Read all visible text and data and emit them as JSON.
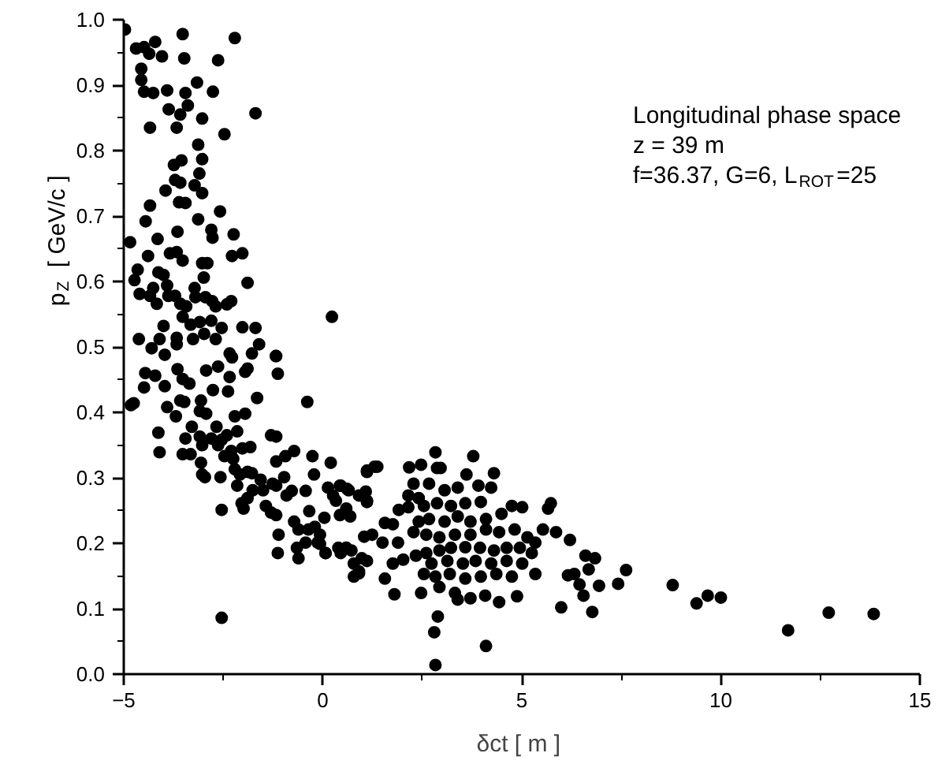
{
  "chart_data": {
    "type": "scatter",
    "xlabel": "δct  [ m ]",
    "ylabel": "p$_{Z}$  [ GeV/c ]",
    "annotations": [
      "Longitudinal phase space",
      "z = 39 m",
      "f=36.37, G=6, L$_{ROT}$=25"
    ],
    "xlim": [
      -5,
      15
    ],
    "xticks": [
      -5,
      0,
      5,
      10,
      15
    ],
    "ylim": [
      0,
      1
    ],
    "yticks": [
      {
        "value": 0,
        "label": "0.0"
      },
      0.1,
      0.2,
      0.3,
      0.4,
      0.5,
      0.6,
      0.7,
      0.8,
      0.9,
      {
        "value": 1,
        "label": "1.0"
      }
    ],
    "grid": false,
    "marker": "circle",
    "series": [
      {
        "color": "#000000",
        "x": [
          -4.97,
          -4.69,
          -4.49,
          -4.36,
          -4.21,
          -4.04,
          -3.52,
          -3.48,
          -2.63,
          -2.21,
          -4.56,
          -4.56,
          -4.49,
          -4.26,
          -3.91,
          -3.45,
          -3.16,
          -2.76,
          -3.39,
          -3.87,
          -3.58,
          -3.03,
          -1.69,
          -4.34,
          -3.67,
          -2.47,
          -3.13,
          -3.03,
          -3.55,
          -3.74,
          -3.71,
          -3.58,
          -3.1,
          -3.95,
          -3.22,
          -3.03,
          -3.61,
          -3.45,
          -4.34,
          -2.58,
          -3.13,
          -4.45,
          -3.65,
          -2.8,
          -2.77,
          -2.24,
          -4.15,
          -4.84,
          -3.84,
          -3.67,
          -4.39,
          -3.52,
          -2.28,
          -2.02,
          -3.03,
          -2.9,
          -4.65,
          -4.73,
          -4.13,
          -4.0,
          -2.99,
          -1.89,
          -4.6,
          -4.34,
          -4.26,
          -3.91,
          -3.88,
          -3.71,
          -4.17,
          -3.58,
          -3.22,
          -3.2,
          -3.43,
          -2.95,
          -2.78,
          -2.69,
          -2.41,
          -2.3,
          -3.52,
          0.23,
          -3.32,
          -3.09,
          -2.8,
          -4.0,
          -2.54,
          -2.02,
          -1.69,
          -4.62,
          -4.1,
          -3.67,
          -3.26,
          -2.69,
          -2.98,
          -1.6,
          -4.3,
          -3.67,
          -2.34,
          -1.78,
          -1.18,
          -3.97,
          -4.82,
          -4.75,
          -4.49,
          -4.46,
          -4.21,
          -3.97,
          -3.91,
          -4.13,
          -4.1,
          -3.65,
          -3.52,
          -3.35,
          -3.69,
          -3.58,
          -3.48,
          -3.29,
          -3.45,
          -3.52,
          -3.32,
          -3.09,
          -3.06,
          -2.93,
          -3.09,
          -3.03,
          -3.06,
          -3.03,
          -2.96,
          -2.8,
          -2.67,
          -2.63,
          -2.54,
          -2.57,
          -2.54,
          -2.47,
          -2.41,
          -2.3,
          -2.25,
          -2.76,
          -2.93,
          -2.63,
          -2.34,
          -2.28,
          -2.38,
          -1.95,
          -1.89,
          -1.65,
          -1.17,
          -1.13,
          -2.21,
          -2.15,
          -1.95,
          -2.02,
          -1.82,
          -2.21,
          -2.08,
          -1.89,
          -1.78,
          -2.15,
          -2.04,
          -1.99,
          -1.89,
          -1.76,
          -1.56,
          -1.5,
          -1.43,
          -1.3,
          -1.17,
          -1.17,
          -1.26,
          -1.17,
          -1.3,
          -1.17,
          -1.11,
          -1.13,
          -0.94,
          -0.72,
          -0.97,
          -0.91,
          -0.78,
          -0.72,
          -0.61,
          -0.65,
          -0.61,
          -0.39,
          -0.43,
          -0.34,
          -0.36,
          -0.43,
          -0.26,
          -0.22,
          -0.2,
          -0.07,
          -0.13,
          -0.07,
          0.07,
          0.04,
          0.13,
          0.2,
          0.26,
          0.33,
          0.45,
          0.61,
          0.43,
          0.59,
          0.69,
          0.39,
          0.45,
          0.59,
          0.72,
          0.78,
          0.91,
          0.98,
          1.04,
          1.11,
          1.11,
          1.3,
          -2.54,
          1.11,
          1.37,
          0.43,
          0.65,
          0.91,
          1.11,
          1.08,
          1.56,
          1.76,
          1.24,
          1.5,
          1.89,
          2.02,
          1.76,
          1.56,
          1.8,
          1.11,
          0.78,
          0.91,
          0.59,
          0.07,
          2.17,
          2.47,
          2.83,
          2.87,
          2.96,
          3.78,
          3.61,
          4.3,
          2.28,
          2.67,
          2.15,
          2.41,
          3.06,
          3.39,
          3.91,
          4.23,
          1.91,
          2.15,
          2.54,
          2.87,
          3.22,
          3.58,
          3.97,
          4.75,
          5.01,
          5.73,
          5.66,
          4.49,
          4.1,
          3.71,
          3.39,
          3.06,
          2.67,
          2.41,
          2.28,
          2.6,
          2.93,
          3.32,
          3.71,
          4.1,
          4.43,
          4.82,
          5.14,
          5.53,
          5.86,
          6.21,
          5.34,
          4.95,
          4.62,
          4.3,
          3.95,
          3.58,
          3.22,
          2.93,
          2.6,
          2.34,
          2.73,
          3.13,
          3.52,
          3.84,
          4.23,
          4.62,
          5.01,
          5.25,
          2.54,
          2.83,
          3.19,
          3.58,
          3.97,
          4.36,
          4.75,
          5.34,
          2.47,
          2.93,
          3.32,
          3.71,
          4.08,
          4.43,
          4.88,
          3.39,
          6.6,
          6.84,
          6.32,
          6.16,
          6.68,
          6.45,
          6.94,
          5.99,
          6.55,
          6.77,
          7.42,
          7.62,
          2.89,
          2.8,
          4.1,
          2.83,
          8.79,
          9.39,
          9.67,
          10.0,
          11.69,
          12.71,
          13.84
        ],
        "values": [
          0.985,
          0.956,
          0.958,
          0.948,
          0.966,
          0.944,
          0.978,
          0.941,
          0.938,
          0.972,
          0.925,
          0.908,
          0.89,
          0.888,
          0.892,
          0.888,
          0.904,
          0.89,
          0.869,
          0.863,
          0.855,
          0.849,
          0.857,
          0.835,
          0.835,
          0.825,
          0.809,
          0.787,
          0.785,
          0.778,
          0.755,
          0.751,
          0.765,
          0.739,
          0.747,
          0.735,
          0.721,
          0.72,
          0.716,
          0.707,
          0.695,
          0.692,
          0.676,
          0.679,
          0.667,
          0.672,
          0.665,
          0.66,
          0.643,
          0.645,
          0.639,
          0.632,
          0.639,
          0.643,
          0.628,
          0.628,
          0.618,
          0.602,
          0.614,
          0.61,
          0.606,
          0.598,
          0.581,
          0.578,
          0.59,
          0.594,
          0.578,
          0.578,
          0.566,
          0.566,
          0.59,
          0.576,
          0.562,
          0.576,
          0.57,
          0.562,
          0.565,
          0.57,
          0.546,
          0.546,
          0.534,
          0.538,
          0.54,
          0.532,
          0.529,
          0.53,
          0.529,
          0.512,
          0.512,
          0.514,
          0.512,
          0.512,
          0.52,
          0.504,
          0.498,
          0.504,
          0.49,
          0.49,
          0.486,
          0.488,
          0.411,
          0.414,
          0.438,
          0.46,
          0.456,
          0.44,
          0.408,
          0.369,
          0.339,
          0.466,
          0.451,
          0.444,
          0.394,
          0.418,
          0.416,
          0.378,
          0.36,
          0.336,
          0.336,
          0.402,
          0.418,
          0.398,
          0.363,
          0.35,
          0.323,
          0.305,
          0.301,
          0.36,
          0.378,
          0.35,
          0.358,
          0.301,
          0.251,
          0.333,
          0.365,
          0.341,
          0.329,
          0.434,
          0.464,
          0.47,
          0.454,
          0.484,
          0.432,
          0.462,
          0.467,
          0.422,
          0.486,
          0.459,
          0.394,
          0.371,
          0.398,
          0.345,
          0.347,
          0.313,
          0.305,
          0.309,
          0.307,
          0.288,
          0.261,
          0.253,
          0.269,
          0.281,
          0.297,
          0.281,
          0.257,
          0.365,
          0.363,
          0.325,
          0.291,
          0.288,
          0.247,
          0.243,
          0.213,
          0.185,
          0.333,
          0.341,
          0.301,
          0.273,
          0.28,
          0.233,
          0.221,
          0.193,
          0.177,
          0.416,
          0.28,
          0.249,
          0.221,
          0.201,
          0.333,
          0.305,
          0.225,
          0.213,
          0.201,
          0.199,
          0.185,
          0.239,
          0.285,
          0.323,
          0.273,
          0.265,
          0.288,
          0.283,
          0.243,
          0.253,
          0.241,
          0.193,
          0.185,
          0.193,
          0.189,
          0.149,
          0.157,
          0.177,
          0.21,
          0.265,
          0.309,
          0.317,
          0.086,
          0.311,
          0.317,
          0.288,
          0.281,
          0.273,
          0.263,
          0.279,
          0.231,
          0.229,
          0.213,
          0.201,
          0.201,
          0.175,
          0.169,
          0.146,
          0.122,
          0.173,
          0.169,
          0.154,
          0.193,
          0.185,
          0.316,
          0.32,
          0.339,
          0.315,
          0.315,
          0.333,
          0.305,
          0.307,
          0.291,
          0.291,
          0.273,
          0.269,
          0.281,
          0.285,
          0.288,
          0.285,
          0.251,
          0.255,
          0.257,
          0.261,
          0.257,
          0.261,
          0.263,
          0.257,
          0.255,
          0.261,
          0.253,
          0.245,
          0.237,
          0.233,
          0.241,
          0.233,
          0.237,
          0.233,
          0.217,
          0.213,
          0.209,
          0.213,
          0.213,
          0.221,
          0.217,
          0.221,
          0.209,
          0.221,
          0.217,
          0.205,
          0.201,
          0.193,
          0.193,
          0.189,
          0.193,
          0.194,
          0.193,
          0.189,
          0.185,
          0.181,
          0.169,
          0.173,
          0.169,
          0.173,
          0.169,
          0.173,
          0.169,
          0.185,
          0.153,
          0.149,
          0.153,
          0.146,
          0.149,
          0.153,
          0.149,
          0.153,
          0.124,
          0.133,
          0.124,
          0.116,
          0.12,
          0.11,
          0.119,
          0.114,
          0.181,
          0.177,
          0.153,
          0.151,
          0.16,
          0.137,
          0.135,
          0.102,
          0.12,
          0.095,
          0.138,
          0.159,
          0.088,
          0.064,
          0.043,
          0.014,
          0.136,
          0.108,
          0.12,
          0.117,
          0.067,
          0.094,
          0.092
        ]
      }
    ]
  }
}
